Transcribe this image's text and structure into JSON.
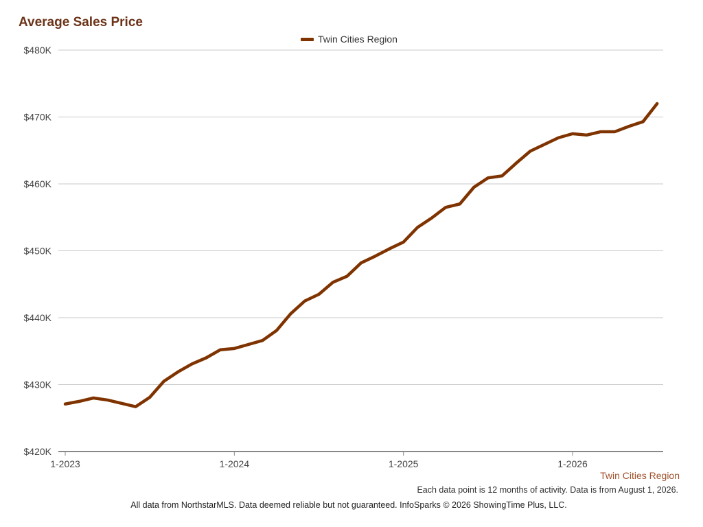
{
  "chart_data": {
    "type": "line",
    "title": "Average Sales Price",
    "x_tick_labels": [
      "1-2023",
      "1-2024",
      "1-2025",
      "1-2026"
    ],
    "y_tick_labels": [
      "$420K",
      "$430K",
      "$440K",
      "$450K",
      "$460K",
      "$470K",
      "$480K"
    ],
    "ylim": [
      420000,
      480000
    ],
    "y_ticks": [
      420000,
      430000,
      440000,
      450000,
      460000,
      470000,
      480000
    ],
    "grid": true,
    "legend_position": "top-center",
    "x": [
      "1-2023",
      "2-2023",
      "3-2023",
      "4-2023",
      "5-2023",
      "6-2023",
      "7-2023",
      "8-2023",
      "9-2023",
      "10-2023",
      "11-2023",
      "12-2023",
      "1-2024",
      "2-2024",
      "3-2024",
      "4-2024",
      "5-2024",
      "6-2024",
      "7-2024",
      "8-2024",
      "9-2024",
      "10-2024",
      "11-2024",
      "12-2024",
      "1-2025",
      "2-2025",
      "3-2025",
      "4-2025",
      "5-2025",
      "6-2025",
      "7-2025",
      "8-2025",
      "9-2025",
      "10-2025",
      "11-2025",
      "12-2025",
      "1-2026",
      "2-2026",
      "3-2026",
      "4-2026",
      "5-2026",
      "6-2026",
      "7-2026"
    ],
    "series": [
      {
        "name": "Twin Cities Region",
        "color": "#7f3300",
        "values": [
          427100,
          427500,
          428000,
          427700,
          427200,
          426700,
          428100,
          430500,
          431900,
          433100,
          434000,
          435200,
          435400,
          436000,
          436600,
          438100,
          440600,
          442500,
          443500,
          445300,
          446200,
          448200,
          449200,
          450300,
          451300,
          453500,
          454900,
          456500,
          457000,
          459500,
          460900,
          461200,
          463100,
          464900,
          465900,
          466900,
          467500,
          467300,
          467800,
          467800,
          468600,
          469300,
          472000
        ]
      }
    ]
  },
  "footer": {
    "region_label": "Twin Cities Region",
    "region_color": "#a0522d",
    "note": "Each data point is 12 months of activity. Data is from August 1, 2026.",
    "source": "All data from NorthstarMLS. Data deemed reliable but not guaranteed. InfoSparks © 2026 ShowingTime Plus, LLC."
  },
  "colors": {
    "title": "#6b3318",
    "grid": "#c8c8c8",
    "axis": "#888888"
  }
}
